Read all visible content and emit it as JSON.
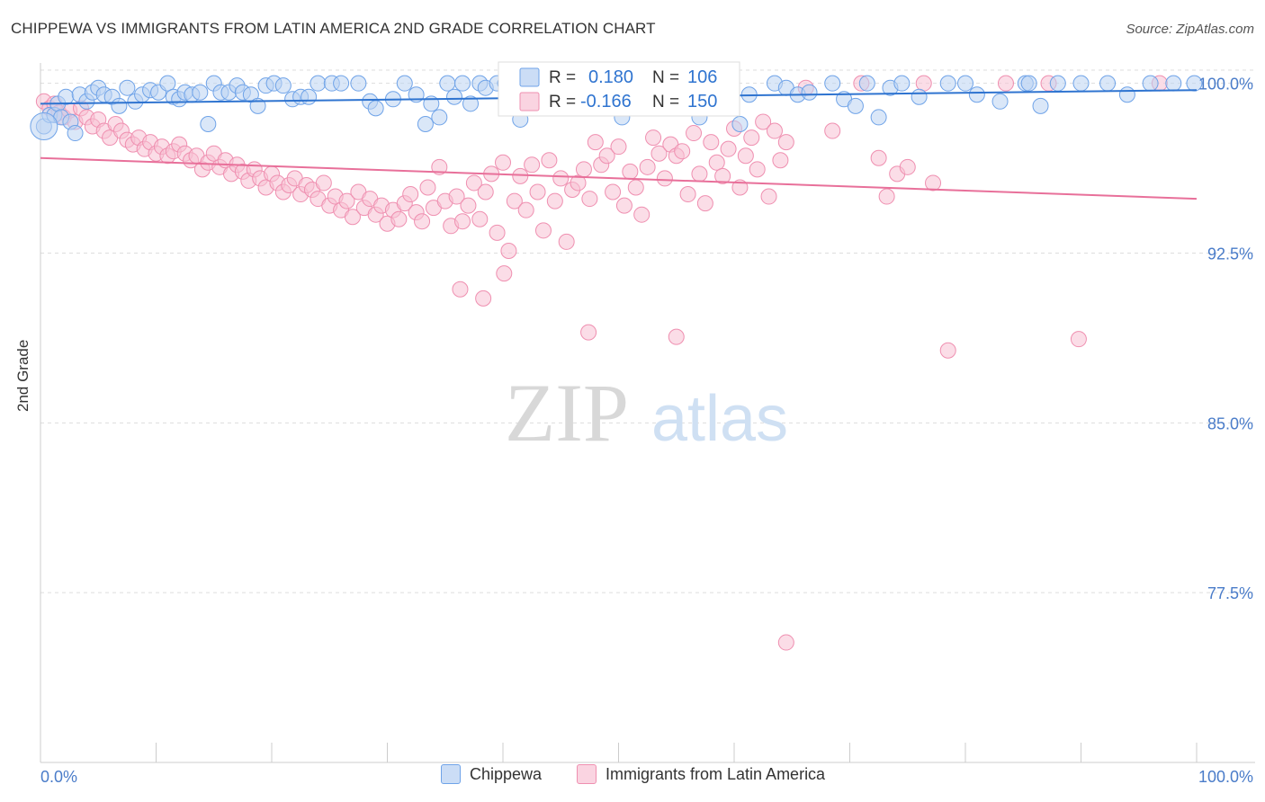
{
  "title": "CHIPPEWA VS IMMIGRANTS FROM LATIN AMERICA 2ND GRADE CORRELATION CHART",
  "source": "Source: ZipAtlas.com",
  "watermark": {
    "zip": "ZIP",
    "atlas": "atlas"
  },
  "colors": {
    "blue": "#6fa3e8",
    "blue_line": "#2f74d0",
    "blue_fill": "rgba(140,180,235,0.35)",
    "pink": "#ef8fb0",
    "pink_line": "#e8709a",
    "pink_fill": "rgba(245,170,195,0.35)",
    "axis_label": "#4a7cc9",
    "grid": "#dddddd"
  },
  "stats_box": {
    "rows": [
      {
        "r_label": "R =",
        "r_value": "0.180",
        "n_label": "N =",
        "n_value": "106"
      },
      {
        "r_label": "R =",
        "r_value": "-0.166",
        "n_label": "N =",
        "n_value": "150"
      }
    ]
  },
  "chart_data": {
    "type": "scatter",
    "title": "CHIPPEWA VS IMMIGRANTS FROM LATIN AMERICA 2ND GRADE CORRELATION CHART",
    "xlabel": "",
    "ylabel": "2nd Grade",
    "xlim": [
      0,
      100
    ],
    "ylim": [
      70.0,
      100.9
    ],
    "x_tick_labels": [
      "0.0%",
      "100.0%"
    ],
    "y_ticks": [
      77.5,
      85.0,
      92.5,
      100.0
    ],
    "y_tick_labels": [
      "77.5%",
      "85.0%",
      "92.5%",
      "100.0%"
    ],
    "grid": true,
    "legend_position": "bottom",
    "series": [
      {
        "name": "Chippewa",
        "color": "#6fa3e8",
        "trend": {
          "x0": 0,
          "y0": 99.1,
          "x1": 100,
          "y1": 99.7
        },
        "points": [
          [
            0.3,
            98.1
          ],
          [
            0.8,
            98.6
          ],
          [
            1.2,
            98.6
          ],
          [
            1.5,
            99.1
          ],
          [
            1.8,
            98.5
          ],
          [
            2.2,
            99.4
          ],
          [
            2.6,
            98.3
          ],
          [
            3.0,
            97.8
          ],
          [
            3.4,
            99.5
          ],
          [
            4.0,
            99.2
          ],
          [
            4.5,
            99.6
          ],
          [
            5.0,
            99.8
          ],
          [
            5.5,
            99.5
          ],
          [
            6.2,
            99.4
          ],
          [
            6.8,
            99.0
          ],
          [
            7.5,
            99.8
          ],
          [
            8.2,
            99.2
          ],
          [
            8.8,
            99.5
          ],
          [
            9.5,
            99.7
          ],
          [
            10.2,
            99.6
          ],
          [
            11.0,
            100.0
          ],
          [
            11.5,
            99.4
          ],
          [
            12.0,
            99.3
          ],
          [
            12.5,
            99.6
          ],
          [
            13.1,
            99.5
          ],
          [
            13.8,
            99.6
          ],
          [
            14.5,
            98.2
          ],
          [
            15.0,
            100.0
          ],
          [
            15.6,
            99.6
          ],
          [
            16.3,
            99.6
          ],
          [
            17.0,
            99.9
          ],
          [
            17.5,
            99.6
          ],
          [
            18.2,
            99.5
          ],
          [
            18.8,
            99.0
          ],
          [
            19.5,
            99.9
          ],
          [
            20.2,
            100.0
          ],
          [
            21.0,
            99.9
          ],
          [
            21.8,
            99.3
          ],
          [
            22.5,
            99.4
          ],
          [
            23.2,
            99.4
          ],
          [
            24.0,
            100.0
          ],
          [
            25.2,
            100.0
          ],
          [
            26.0,
            100.0
          ],
          [
            27.5,
            100.0
          ],
          [
            28.5,
            99.2
          ],
          [
            29.0,
            98.9
          ],
          [
            30.5,
            99.3
          ],
          [
            31.5,
            100.0
          ],
          [
            32.5,
            99.5
          ],
          [
            33.3,
            98.2
          ],
          [
            33.8,
            99.1
          ],
          [
            34.5,
            98.5
          ],
          [
            35.2,
            100.0
          ],
          [
            35.8,
            99.4
          ],
          [
            36.5,
            100.0
          ],
          [
            37.2,
            99.1
          ],
          [
            38.0,
            100.0
          ],
          [
            38.5,
            99.8
          ],
          [
            39.5,
            100.0
          ],
          [
            40.2,
            100.0
          ],
          [
            41.0,
            99.6
          ],
          [
            41.5,
            98.4
          ],
          [
            42.5,
            99.5
          ],
          [
            43.2,
            100.0
          ],
          [
            44.5,
            99.7
          ],
          [
            45.2,
            99.0
          ],
          [
            46.5,
            100.0
          ],
          [
            48.0,
            99.4
          ],
          [
            49.5,
            99.1
          ],
          [
            50.3,
            98.5
          ],
          [
            51.0,
            100.0
          ],
          [
            52.2,
            99.0
          ],
          [
            53.5,
            99.5
          ],
          [
            54.5,
            99.4
          ],
          [
            55.3,
            99.1
          ],
          [
            56.5,
            99.8
          ],
          [
            57.0,
            98.5
          ],
          [
            58.5,
            99.6
          ],
          [
            60.5,
            98.2
          ],
          [
            61.3,
            99.5
          ],
          [
            63.5,
            100.0
          ],
          [
            64.5,
            99.8
          ],
          [
            65.5,
            99.5
          ],
          [
            66.5,
            99.6
          ],
          [
            68.5,
            100.0
          ],
          [
            69.5,
            99.3
          ],
          [
            70.5,
            99.0
          ],
          [
            71.5,
            100.0
          ],
          [
            72.5,
            98.5
          ],
          [
            73.5,
            99.8
          ],
          [
            74.5,
            100.0
          ],
          [
            76.0,
            99.4
          ],
          [
            78.5,
            100.0
          ],
          [
            80.0,
            100.0
          ],
          [
            81.0,
            99.5
          ],
          [
            83.0,
            99.2
          ],
          [
            85.2,
            100.0
          ],
          [
            85.5,
            100.0
          ],
          [
            86.5,
            99.0
          ],
          [
            88.0,
            100.0
          ],
          [
            90.0,
            100.0
          ],
          [
            92.3,
            100.0
          ],
          [
            94.0,
            99.5
          ],
          [
            96.0,
            100.0
          ],
          [
            98.0,
            100.0
          ],
          [
            99.8,
            100.0
          ]
        ]
      },
      {
        "name": "Immigrants from Latin America",
        "color": "#ef8fb0",
        "trend": {
          "x0": 0,
          "y0": 96.7,
          "x1": 100,
          "y1": 94.9
        },
        "points": [
          [
            0.3,
            99.2
          ],
          [
            0.8,
            98.9
          ],
          [
            1.2,
            99.1
          ],
          [
            1.6,
            98.7
          ],
          [
            2.0,
            98.5
          ],
          [
            2.5,
            98.8
          ],
          [
            3.0,
            98.3
          ],
          [
            3.5,
            98.9
          ],
          [
            4.0,
            98.5
          ],
          [
            4.5,
            98.1
          ],
          [
            5.0,
            98.4
          ],
          [
            5.5,
            97.9
          ],
          [
            6.0,
            97.6
          ],
          [
            6.5,
            98.2
          ],
          [
            7.0,
            97.9
          ],
          [
            7.5,
            97.5
          ],
          [
            8.0,
            97.3
          ],
          [
            8.5,
            97.6
          ],
          [
            9.0,
            97.1
          ],
          [
            9.5,
            97.4
          ],
          [
            10.0,
            96.9
          ],
          [
            10.5,
            97.2
          ],
          [
            11.0,
            96.8
          ],
          [
            11.5,
            97.0
          ],
          [
            12.0,
            97.3
          ],
          [
            12.5,
            96.9
          ],
          [
            13.0,
            96.6
          ],
          [
            13.5,
            96.8
          ],
          [
            14.0,
            96.2
          ],
          [
            14.5,
            96.5
          ],
          [
            15.0,
            96.9
          ],
          [
            15.5,
            96.3
          ],
          [
            16.0,
            96.6
          ],
          [
            16.5,
            96.0
          ],
          [
            17.0,
            96.4
          ],
          [
            17.5,
            96.1
          ],
          [
            18.0,
            95.7
          ],
          [
            18.5,
            96.2
          ],
          [
            19.0,
            95.8
          ],
          [
            19.5,
            95.4
          ],
          [
            20.0,
            96.0
          ],
          [
            20.5,
            95.6
          ],
          [
            21.0,
            95.2
          ],
          [
            21.5,
            95.5
          ],
          [
            22.0,
            95.8
          ],
          [
            22.5,
            95.1
          ],
          [
            23.0,
            95.5
          ],
          [
            23.5,
            95.3
          ],
          [
            24.0,
            94.9
          ],
          [
            24.5,
            95.6
          ],
          [
            25.0,
            94.6
          ],
          [
            25.5,
            95.0
          ],
          [
            26.0,
            94.4
          ],
          [
            26.5,
            94.8
          ],
          [
            27.0,
            94.1
          ],
          [
            27.5,
            95.2
          ],
          [
            28.0,
            94.5
          ],
          [
            28.5,
            94.9
          ],
          [
            29.0,
            94.2
          ],
          [
            29.5,
            94.6
          ],
          [
            30.0,
            93.8
          ],
          [
            30.5,
            94.4
          ],
          [
            31.0,
            94.0
          ],
          [
            31.5,
            94.7
          ],
          [
            32.0,
            95.1
          ],
          [
            32.5,
            94.3
          ],
          [
            33.0,
            93.9
          ],
          [
            33.5,
            95.4
          ],
          [
            34.0,
            94.5
          ],
          [
            34.5,
            96.3
          ],
          [
            35.0,
            94.8
          ],
          [
            35.5,
            93.7
          ],
          [
            36.0,
            95.0
          ],
          [
            36.5,
            93.9
          ],
          [
            37.0,
            94.6
          ],
          [
            37.5,
            95.6
          ],
          [
            38.0,
            94.0
          ],
          [
            38.5,
            95.2
          ],
          [
            39.0,
            96.0
          ],
          [
            39.5,
            93.4
          ],
          [
            40.0,
            96.5
          ],
          [
            40.5,
            92.6
          ],
          [
            41.0,
            94.8
          ],
          [
            41.5,
            95.9
          ],
          [
            42.0,
            94.4
          ],
          [
            42.5,
            96.4
          ],
          [
            43.0,
            95.2
          ],
          [
            43.5,
            93.5
          ],
          [
            44.0,
            96.6
          ],
          [
            44.5,
            94.8
          ],
          [
            45.0,
            95.8
          ],
          [
            45.5,
            93.0
          ],
          [
            46.0,
            95.3
          ],
          [
            46.5,
            95.6
          ],
          [
            47.0,
            96.2
          ],
          [
            47.5,
            94.9
          ],
          [
            48.0,
            97.4
          ],
          [
            48.5,
            96.4
          ],
          [
            49.0,
            96.8
          ],
          [
            49.5,
            95.2
          ],
          [
            50.0,
            97.2
          ],
          [
            50.5,
            94.6
          ],
          [
            51.0,
            96.1
          ],
          [
            51.5,
            95.4
          ],
          [
            52.0,
            94.2
          ],
          [
            52.5,
            96.3
          ],
          [
            53.0,
            97.6
          ],
          [
            53.5,
            96.9
          ],
          [
            54.0,
            95.8
          ],
          [
            54.5,
            97.3
          ],
          [
            55.0,
            96.8
          ],
          [
            55.5,
            97.0
          ],
          [
            56.0,
            95.1
          ],
          [
            56.5,
            97.8
          ],
          [
            57.0,
            96.0
          ],
          [
            57.5,
            94.7
          ],
          [
            58.0,
            97.4
          ],
          [
            58.5,
            96.5
          ],
          [
            59.0,
            95.9
          ],
          [
            59.5,
            97.1
          ],
          [
            60.0,
            98.0
          ],
          [
            60.5,
            95.4
          ],
          [
            61.0,
            96.8
          ],
          [
            61.5,
            97.6
          ],
          [
            62.0,
            96.2
          ],
          [
            62.5,
            98.3
          ],
          [
            63.0,
            95.0
          ],
          [
            63.5,
            97.9
          ],
          [
            64.0,
            96.6
          ],
          [
            64.5,
            97.4
          ],
          [
            36.3,
            90.9
          ],
          [
            38.3,
            90.5
          ],
          [
            40.1,
            91.6
          ],
          [
            47.4,
            89.0
          ],
          [
            55.0,
            88.8
          ],
          [
            78.5,
            88.2
          ],
          [
            89.8,
            88.7
          ],
          [
            64.5,
            75.3
          ],
          [
            71.0,
            100.0
          ],
          [
            76.4,
            100.0
          ],
          [
            83.5,
            100.0
          ],
          [
            87.2,
            100.0
          ],
          [
            96.8,
            100.0
          ],
          [
            72.5,
            96.7
          ],
          [
            74.1,
            96.0
          ],
          [
            75.0,
            96.3
          ],
          [
            77.2,
            95.6
          ],
          [
            73.2,
            95.0
          ],
          [
            66.2,
            99.8
          ],
          [
            68.5,
            97.9
          ]
        ]
      }
    ]
  }
}
